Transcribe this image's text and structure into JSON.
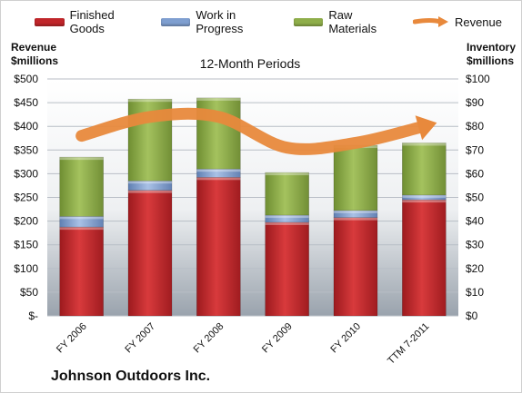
{
  "legend": {
    "finished_goods": "Finished Goods",
    "work_in_progress": "Work in Progress",
    "raw_materials": "Raw Materials",
    "revenue": "Revenue"
  },
  "left_axis_title_line1": "Revenue",
  "left_axis_title_line2": "$millions",
  "right_axis_title_line1": "Inventory",
  "right_axis_title_line2": "$millions",
  "subtitle": "12-Month Periods",
  "company": "Johnson Outdoors Inc.",
  "colors": {
    "finished_goods": "#c0262a",
    "work_in_progress": "#7f9fd0",
    "raw_materials": "#8fae4a",
    "revenue": "#e8893c",
    "plot_background_top": "#ffffff",
    "plot_background_bottom": "#9aa3ad"
  },
  "chart_data": {
    "type": "bar",
    "stacked": true,
    "categories": [
      "FY 2006",
      "FY 2007",
      "FY 2008",
      "FY 2009",
      "FY 2010",
      "TTM 7-2011"
    ],
    "series": [
      {
        "name": "Finished Goods",
        "axis": "right",
        "values": [
          37.5,
          53,
          58.5,
          39.5,
          41.5,
          49
        ]
      },
      {
        "name": "Work in Progress",
        "axis": "right",
        "values": [
          4.5,
          4,
          3.5,
          3,
          3,
          2
        ]
      },
      {
        "name": "Raw Materials",
        "axis": "right",
        "values": [
          25,
          34.5,
          30,
          18,
          27.5,
          22
        ]
      },
      {
        "name": "Revenue",
        "axis": "left",
        "type": "line",
        "values": [
          380,
          420,
          420,
          355,
          365,
          400
        ]
      }
    ],
    "left_axis": {
      "label": "Revenue $millions",
      "ylim": [
        0,
        500
      ],
      "ticks": [
        "$-",
        "$50",
        "$100",
        "$150",
        "$200",
        "$250",
        "$300",
        "$350",
        "$400",
        "$450",
        "$500"
      ]
    },
    "right_axis": {
      "label": "Inventory $millions",
      "ylim": [
        0,
        100
      ],
      "ticks": [
        "$0",
        "$10",
        "$20",
        "$30",
        "$40",
        "$50",
        "$60",
        "$70",
        "$80",
        "$90",
        "$100"
      ]
    },
    "grid": true,
    "legend_position": "top"
  }
}
